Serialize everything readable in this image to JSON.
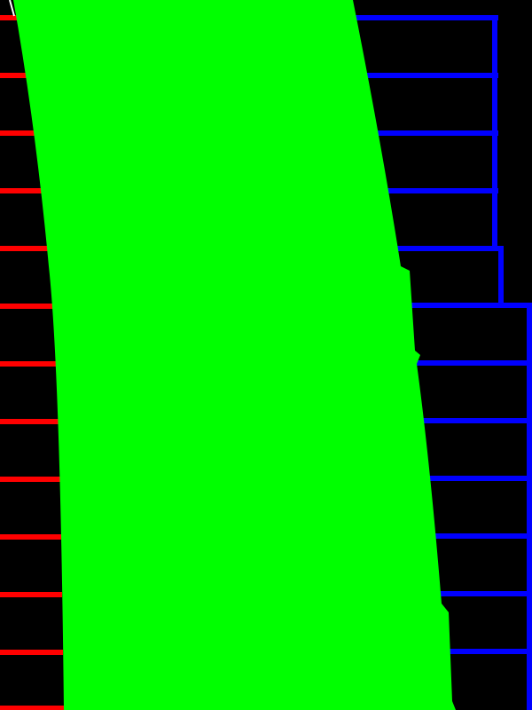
{
  "scene": {
    "background_color": "#000000",
    "colors": {
      "drivable_area": "#00ff00",
      "left_markings": "#ff0000",
      "right_markings": "#0000ff",
      "edge_line": "#ffffff"
    }
  }
}
